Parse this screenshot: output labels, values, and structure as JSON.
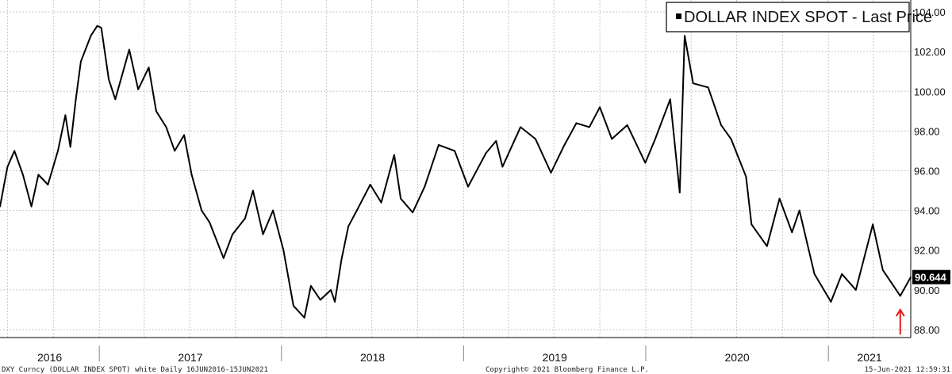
{
  "chart_data": {
    "type": "line",
    "title": "",
    "xlabel": "",
    "ylabel": "",
    "series": [
      {
        "name": "DOLLAR INDEX SPOT - Last Price",
        "color": "#000000",
        "points": [
          [
            "2016-06-16",
            94.2
          ],
          [
            "2016-07-01",
            96.2
          ],
          [
            "2016-07-15",
            97.0
          ],
          [
            "2016-08-01",
            95.8
          ],
          [
            "2016-08-18",
            94.2
          ],
          [
            "2016-09-01",
            95.8
          ],
          [
            "2016-09-20",
            95.3
          ],
          [
            "2016-10-10",
            97.0
          ],
          [
            "2016-10-25",
            98.8
          ],
          [
            "2016-11-04",
            97.2
          ],
          [
            "2016-11-15",
            99.6
          ],
          [
            "2016-11-25",
            101.5
          ],
          [
            "2016-12-15",
            102.8
          ],
          [
            "2016-12-28",
            103.3
          ],
          [
            "2017-01-05",
            103.2
          ],
          [
            "2017-01-20",
            100.6
          ],
          [
            "2017-02-02",
            99.6
          ],
          [
            "2017-02-20",
            101.2
          ],
          [
            "2017-03-02",
            102.1
          ],
          [
            "2017-03-20",
            100.1
          ],
          [
            "2017-04-10",
            101.2
          ],
          [
            "2017-04-25",
            99.0
          ],
          [
            "2017-05-15",
            98.2
          ],
          [
            "2017-06-01",
            97.0
          ],
          [
            "2017-06-20",
            97.8
          ],
          [
            "2017-07-05",
            95.8
          ],
          [
            "2017-07-25",
            94.0
          ],
          [
            "2017-08-10",
            93.4
          ],
          [
            "2017-09-07",
            91.6
          ],
          [
            "2017-09-25",
            92.8
          ],
          [
            "2017-10-20",
            93.6
          ],
          [
            "2017-11-05",
            95.0
          ],
          [
            "2017-11-25",
            92.8
          ],
          [
            "2017-12-15",
            94.0
          ],
          [
            "2018-01-05",
            92.0
          ],
          [
            "2018-01-25",
            89.2
          ],
          [
            "2018-02-16",
            88.6
          ],
          [
            "2018-03-01",
            90.2
          ],
          [
            "2018-03-20",
            89.5
          ],
          [
            "2018-04-10",
            90.0
          ],
          [
            "2018-04-18",
            89.4
          ],
          [
            "2018-05-01",
            91.5
          ],
          [
            "2018-05-15",
            93.2
          ],
          [
            "2018-06-01",
            94.0
          ],
          [
            "2018-06-28",
            95.3
          ],
          [
            "2018-07-20",
            94.4
          ],
          [
            "2018-08-15",
            96.8
          ],
          [
            "2018-08-28",
            94.6
          ],
          [
            "2018-09-21",
            93.9
          ],
          [
            "2018-10-15",
            95.2
          ],
          [
            "2018-11-12",
            97.3
          ],
          [
            "2018-12-14",
            97.0
          ],
          [
            "2019-01-10",
            95.2
          ],
          [
            "2019-02-15",
            96.9
          ],
          [
            "2019-03-07",
            97.5
          ],
          [
            "2019-03-20",
            96.2
          ],
          [
            "2019-04-25",
            98.2
          ],
          [
            "2019-05-25",
            97.6
          ],
          [
            "2019-06-25",
            95.9
          ],
          [
            "2019-07-20",
            97.2
          ],
          [
            "2019-08-15",
            98.4
          ],
          [
            "2019-09-10",
            98.2
          ],
          [
            "2019-10-01",
            99.2
          ],
          [
            "2019-10-25",
            97.6
          ],
          [
            "2019-11-25",
            98.3
          ],
          [
            "2019-12-31",
            96.4
          ],
          [
            "2020-01-20",
            97.6
          ],
          [
            "2020-02-19",
            99.6
          ],
          [
            "2020-03-09",
            94.9
          ],
          [
            "2020-03-19",
            102.8
          ],
          [
            "2020-04-05",
            100.4
          ],
          [
            "2020-05-05",
            100.2
          ],
          [
            "2020-05-31",
            98.3
          ],
          [
            "2020-06-20",
            97.6
          ],
          [
            "2020-07-20",
            95.7
          ],
          [
            "2020-07-31",
            93.3
          ],
          [
            "2020-08-31",
            92.2
          ],
          [
            "2020-09-25",
            94.6
          ],
          [
            "2020-10-20",
            92.9
          ],
          [
            "2020-11-04",
            94.0
          ],
          [
            "2020-12-04",
            90.8
          ],
          [
            "2021-01-06",
            89.4
          ],
          [
            "2021-01-28",
            90.8
          ],
          [
            "2021-02-25",
            90.0
          ],
          [
            "2021-03-31",
            93.3
          ],
          [
            "2021-04-20",
            91.0
          ],
          [
            "2021-05-25",
            89.7
          ],
          [
            "2021-06-15",
            90.644
          ]
        ]
      }
    ],
    "yaxis": {
      "side": "right",
      "min": 87.6,
      "max": 104.6,
      "ticks": [
        "88.00",
        "90.00",
        "92.00",
        "94.00",
        "96.00",
        "98.00",
        "100.00",
        "102.00",
        "104.00"
      ]
    },
    "xaxis": {
      "start": "2016-06-16",
      "end": "2021-06-15",
      "year_labels": [
        "2016",
        "2017",
        "2018",
        "2019",
        "2020",
        "2021"
      ],
      "vertical_grid_dates": [
        "2016-07-01",
        "2016-10-01",
        "2017-01-01",
        "2017-04-01",
        "2017-07-01",
        "2017-10-01",
        "2018-01-01",
        "2018-04-01",
        "2018-07-01",
        "2018-10-01",
        "2019-01-01",
        "2019-04-01",
        "2019-07-01",
        "2019-10-01",
        "2020-01-01",
        "2020-04-01",
        "2020-07-01",
        "2020-10-01",
        "2021-01-01",
        "2021-04-01"
      ]
    },
    "grid": true,
    "legend": {
      "position": "top-right",
      "label": "DOLLAR INDEX SPOT - Last Price"
    },
    "last_value": {
      "label": "90.644",
      "value": 90.644,
      "color": "#000000"
    },
    "annotation": {
      "type": "arrow",
      "color": "#e31b1b",
      "date": "2021-05-25",
      "value_tip": 89.0,
      "value_tail": 87.75
    },
    "footer": {
      "left": "DXY Curncy (DOLLAR INDEX SPOT) white  Daily 16JUN2016-15JUN2021",
      "center": "Copyright© 2021 Bloomberg Finance L.P.",
      "right": "15-Jun-2021 12:59:31"
    }
  }
}
